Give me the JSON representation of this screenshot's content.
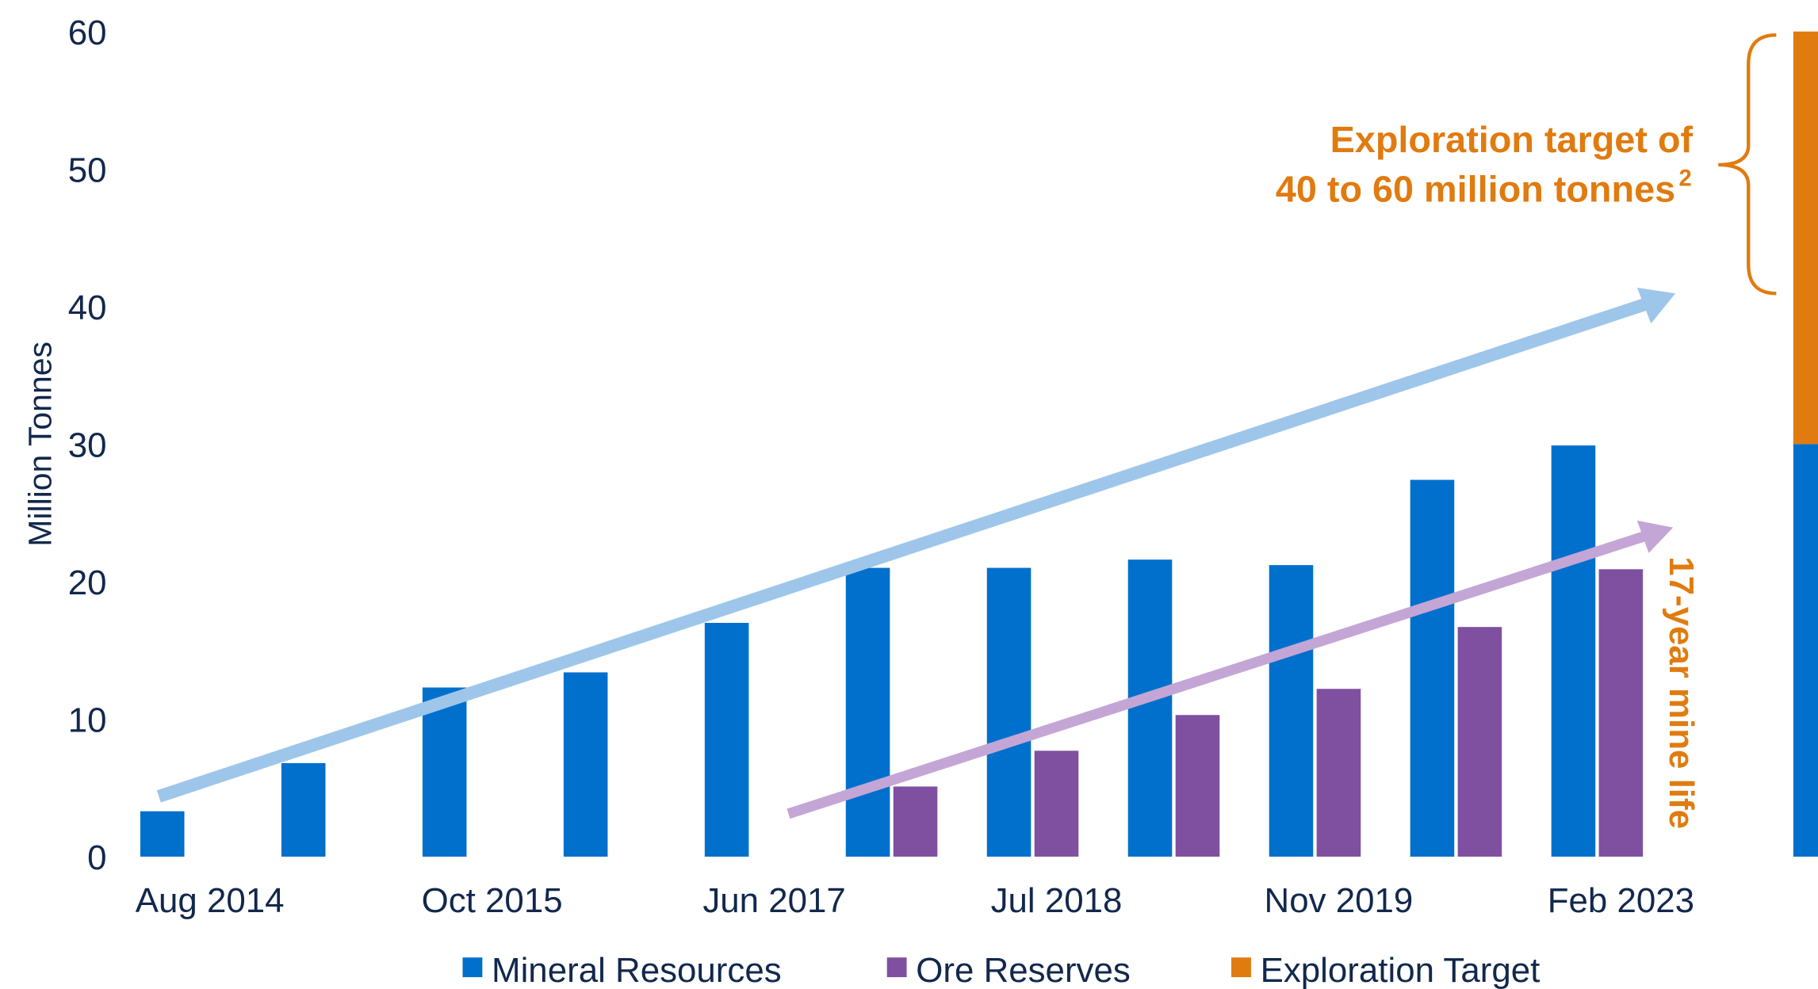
{
  "chart_data": {
    "type": "bar",
    "y_label": "Million Tonnes",
    "categories": [
      "Aug 2014",
      null,
      "Oct 2015",
      null,
      "Jun 2017",
      null,
      "Jul 2018",
      null,
      "Nov 2019",
      null,
      "Feb 2023",
      null
    ],
    "series": [
      {
        "name": "Mineral Resources",
        "color": "#0070cc",
        "values": [
          3.3,
          6.8,
          12.3,
          13.4,
          17,
          21,
          21,
          21.6,
          21.2,
          27.4,
          29.9,
          30
        ]
      },
      {
        "name": "Ore Reserves",
        "color": "#7f50a0",
        "values": [
          null,
          null,
          null,
          null,
          null,
          5.1,
          7.7,
          10.3,
          12.2,
          16.7,
          20.9,
          null
        ]
      },
      {
        "name": "Exploration Target",
        "color": "#e07b10",
        "values": [
          null,
          null,
          null,
          null,
          null,
          null,
          null,
          null,
          null,
          null,
          null,
          30
        ]
      }
    ],
    "ylim": [
      0,
      60
    ],
    "yticks": [
      0,
      10,
      20,
      30,
      40,
      50,
      60
    ],
    "annotations": [
      "Exploration target of",
      "40 to 60 million tonnes",
      "2",
      "17-year mine life"
    ]
  }
}
